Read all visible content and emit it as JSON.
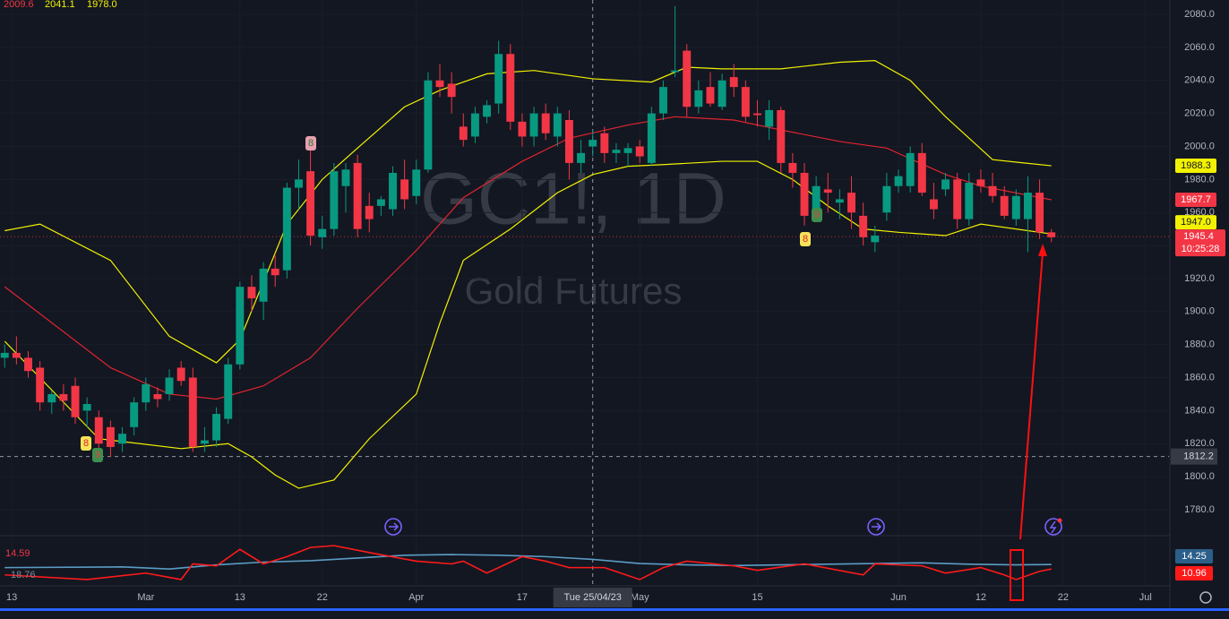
{
  "chart_data": {
    "type": "candlestick",
    "title": "GC1!, 1D",
    "subtitle": "Gold Futures",
    "legend_values": [
      "2009.6",
      "2041.1",
      "1978.0"
    ],
    "up_color": "#089981",
    "down_color": "#f23645",
    "candles": [
      [
        1872,
        1880,
        1866,
        1875
      ],
      [
        1875,
        1885,
        1868,
        1872
      ],
      [
        1872,
        1876,
        1860,
        1864
      ],
      [
        1866,
        1870,
        1840,
        1845
      ],
      [
        1845,
        1852,
        1838,
        1850
      ],
      [
        1850,
        1856,
        1840,
        1846
      ],
      [
        1855,
        1860,
        1832,
        1836
      ],
      [
        1840,
        1848,
        1830,
        1844
      ],
      [
        1836,
        1840,
        1815,
        1820
      ],
      [
        1830,
        1834,
        1812,
        1818
      ],
      [
        1820,
        1830,
        1815,
        1826
      ],
      [
        1830,
        1848,
        1825,
        1845
      ],
      [
        1845,
        1860,
        1840,
        1856
      ],
      [
        1850,
        1854,
        1842,
        1847
      ],
      [
        1850,
        1865,
        1846,
        1860
      ],
      [
        1866,
        1870,
        1855,
        1858
      ],
      [
        1860,
        1866,
        1815,
        1818
      ],
      [
        1820,
        1830,
        1815,
        1822
      ],
      [
        1822,
        1842,
        1818,
        1838
      ],
      [
        1835,
        1872,
        1832,
        1868
      ],
      [
        1868,
        1918,
        1865,
        1915
      ],
      [
        1915,
        1922,
        1900,
        1908
      ],
      [
        1906,
        1930,
        1895,
        1926
      ],
      [
        1926,
        1934,
        1915,
        1922
      ],
      [
        1925,
        1978,
        1920,
        1975
      ],
      [
        1975,
        1992,
        1962,
        1980
      ],
      [
        1985,
        2003,
        1940,
        1946
      ],
      [
        1945,
        1958,
        1938,
        1950
      ],
      [
        1950,
        1990,
        1946,
        1985
      ],
      [
        1976,
        1990,
        1960,
        1986
      ],
      [
        1990,
        1995,
        1945,
        1950
      ],
      [
        1964,
        1972,
        1948,
        1956
      ],
      [
        1964,
        1970,
        1958,
        1968
      ],
      [
        1962,
        1988,
        1958,
        1984
      ],
      [
        1980,
        1992,
        1962,
        1968
      ],
      [
        1970,
        1992,
        1965,
        1986
      ],
      [
        1986,
        2045,
        1984,
        2040
      ],
      [
        2040,
        2050,
        2030,
        2036
      ],
      [
        2038,
        2045,
        2020,
        2030
      ],
      [
        2012,
        2020,
        2000,
        2004
      ],
      [
        2006,
        2024,
        2002,
        2020
      ],
      [
        2018,
        2028,
        2014,
        2025
      ],
      [
        2026,
        2064,
        2020,
        2056
      ],
      [
        2056,
        2062,
        2010,
        2015
      ],
      [
        2015,
        2020,
        2000,
        2006
      ],
      [
        2006,
        2024,
        2000,
        2020
      ],
      [
        2020,
        2026,
        2004,
        2008
      ],
      [
        2006,
        2024,
        2000,
        2020
      ],
      [
        2016,
        2022,
        1980,
        1990
      ],
      [
        1990,
        2004,
        1984,
        1996
      ],
      [
        2000,
        2010,
        1994,
        2004
      ],
      [
        2008,
        2012,
        1990,
        1996
      ],
      [
        1996,
        2002,
        1990,
        1998
      ],
      [
        1996,
        2002,
        1988,
        1999
      ],
      [
        2000,
        2004,
        1990,
        1994
      ],
      [
        1990,
        2024,
        1988,
        2020
      ],
      [
        2020,
        2040,
        2016,
        2036
      ],
      [
        2045,
        2085,
        2042,
        2046
      ],
      [
        2058,
        2062,
        2018,
        2024
      ],
      [
        2024,
        2040,
        2020,
        2034
      ],
      [
        2036,
        2045,
        2024,
        2026
      ],
      [
        2024,
        2044,
        2022,
        2040
      ],
      [
        2042,
        2050,
        2030,
        2036
      ],
      [
        2036,
        2040,
        2015,
        2018
      ],
      [
        2020,
        2028,
        2012,
        2019
      ],
      [
        2012,
        2028,
        2004,
        2022
      ],
      [
        2022,
        2024,
        1984,
        1990
      ],
      [
        1990,
        1996,
        1975,
        1984
      ],
      [
        1984,
        1990,
        1952,
        1958
      ],
      [
        1960,
        1982,
        1956,
        1976
      ],
      [
        1974,
        1984,
        1960,
        1972
      ],
      [
        1966,
        1974,
        1956,
        1968
      ],
      [
        1972,
        1982,
        1950,
        1960
      ],
      [
        1958,
        1966,
        1940,
        1945
      ],
      [
        1942,
        1952,
        1936,
        1946
      ],
      [
        1960,
        1984,
        1955,
        1976
      ],
      [
        1976,
        1986,
        1972,
        1982
      ],
      [
        1976,
        2000,
        1972,
        1996
      ],
      [
        1996,
        2002,
        1970,
        1972
      ],
      [
        1968,
        1978,
        1956,
        1962
      ],
      [
        1974,
        1984,
        1970,
        1980
      ],
      [
        1980,
        1984,
        1950,
        1956
      ],
      [
        1956,
        1984,
        1952,
        1978
      ],
      [
        1980,
        1986,
        1972,
        1976
      ],
      [
        1976,
        1984,
        1966,
        1970
      ],
      [
        1970,
        1976,
        1956,
        1958
      ],
      [
        1956,
        1974,
        1952,
        1970
      ],
      [
        1956,
        1982,
        1936,
        1972
      ],
      [
        1972,
        1980,
        1944,
        1948
      ],
      [
        1948,
        1950,
        1942,
        1945
      ]
    ],
    "xlim": [
      -0.4,
      99
    ],
    "xticks": [
      {
        "value": 0.6,
        "label": "13"
      },
      {
        "value": 12,
        "label": "Mar"
      },
      {
        "value": 20,
        "label": "13"
      },
      {
        "value": 27,
        "label": "22"
      },
      {
        "value": 35,
        "label": "Apr"
      },
      {
        "value": 44,
        "label": "17"
      },
      {
        "value": 54,
        "label": "May"
      },
      {
        "value": 64,
        "label": "15"
      },
      {
        "value": 76,
        "label": "Jun"
      },
      {
        "value": 83,
        "label": "12"
      },
      {
        "value": 90,
        "label": "22"
      },
      {
        "value": 97,
        "label": "Jul"
      }
    ],
    "ylim": [
      1768.6,
      2088.7
    ],
    "yticks": [
      {
        "value": 1780,
        "label": "1780.0"
      },
      {
        "value": 1800,
        "label": "1800.0"
      },
      {
        "value": 1820,
        "label": "1820.0"
      },
      {
        "value": 1840,
        "label": "1840.0"
      },
      {
        "value": 1860,
        "label": "1860.0"
      },
      {
        "value": 1880,
        "label": "1880.0"
      },
      {
        "value": 1900,
        "label": "1900.0"
      },
      {
        "value": 1920,
        "label": "1920.0"
      },
      {
        "value": 1940,
        "label": "1940.0"
      },
      {
        "value": 1960,
        "label": "1960.0"
      },
      {
        "value": 1980,
        "label": "1980.0"
      },
      {
        "value": 2000,
        "label": "2000.0"
      },
      {
        "value": 2020,
        "label": "2020.0"
      },
      {
        "value": 2040,
        "label": "2040.0"
      },
      {
        "value": 2060,
        "label": "2060.0"
      },
      {
        "value": 2080,
        "label": "2080.0"
      }
    ],
    "crosshair": {
      "x": {
        "value": 50,
        "label": "Tue 25/04/23"
      },
      "y": 1812.2
    },
    "last_price": {
      "value": 1945.4,
      "countdown": "10:25:28",
      "color": "#f23645"
    },
    "overlays": [
      {
        "color": "#f2f200",
        "tag": 1988.3,
        "x": [
          0,
          3,
          9,
          14,
          18,
          20,
          24,
          27,
          30,
          34,
          37,
          41,
          45,
          50,
          55,
          58,
          61,
          66,
          71,
          74,
          77,
          80,
          84,
          89
        ],
        "values": [
          1949,
          1953,
          1931,
          1885,
          1869,
          1883,
          1953,
          1980,
          1999,
          2024,
          2034,
          2044,
          2046,
          2041,
          2039,
          2048,
          2047,
          2047,
          2051,
          2052,
          2040,
          2018,
          1992,
          1988.3
        ]
      },
      {
        "color": "#e0242e",
        "tag": 1967.7,
        "x": [
          0,
          9,
          14,
          18,
          22,
          26,
          30,
          35,
          39,
          44,
          48,
          53,
          57,
          62,
          66,
          71,
          75,
          80,
          83,
          89
        ],
        "values": [
          1915,
          1866,
          1850,
          1847,
          1855,
          1872,
          1902,
          1937,
          1969,
          1991,
          2005,
          2013,
          2018,
          2016,
          2010,
          2003,
          1999,
          1983,
          1976,
          1967.7
        ]
      },
      {
        "color": "#f2f200",
        "tag": {
          "value": 1947,
          "label": "1947.0"
        },
        "x": [
          0,
          8,
          15,
          19,
          21,
          23,
          25,
          28,
          31,
          35,
          37,
          39,
          43,
          47,
          50,
          53,
          56,
          61,
          64,
          67,
          70,
          73,
          76,
          80,
          83,
          89
        ],
        "values": [
          1882,
          1823,
          1817,
          1820,
          1812,
          1801,
          1793,
          1798,
          1823,
          1850,
          1893,
          1931,
          1950,
          1972,
          1983,
          1988,
          1989,
          1991,
          1991,
          1980,
          1964,
          1950,
          1948,
          1946,
          1953,
          1947
        ]
      }
    ],
    "indicator": {
      "ylim": [
        0,
        32
      ],
      "left_labels": [
        "14.59",
        "18.76"
      ],
      "series": [
        {
          "color": "#5b9cc4",
          "tag": 14.25,
          "x": [
            0,
            10,
            14,
            18,
            22,
            26,
            30,
            34,
            38,
            42,
            46,
            50,
            54,
            58,
            62,
            66,
            70,
            74,
            78,
            82,
            86,
            89
          ],
          "values": [
            12,
            12.5,
            11,
            14,
            16,
            17,
            19,
            21,
            21.5,
            21,
            20,
            18,
            15,
            14,
            13.5,
            14,
            14.5,
            15,
            15.5,
            14.5,
            14,
            14.25
          ]
        },
        {
          "color": "#ff1a1a",
          "tag": 10.96,
          "x": [
            0,
            7,
            12,
            15,
            16,
            18,
            20,
            22,
            24,
            26,
            28,
            31,
            35,
            38,
            39,
            41,
            44,
            46,
            48,
            51,
            54,
            56,
            58,
            62,
            64,
            68,
            73,
            74,
            78,
            80,
            83,
            85,
            86,
            88,
            89
          ],
          "values": [
            6.7,
            3.3,
            8,
            3.3,
            14.7,
            13.3,
            25.3,
            14.7,
            20,
            26.7,
            28,
            23,
            16.7,
            14.7,
            16.7,
            8,
            20,
            16.7,
            12,
            12,
            3.3,
            12,
            16.7,
            13.3,
            10,
            14.7,
            6.7,
            14.7,
            13.3,
            8,
            12,
            6.7,
            3.3,
            9.3,
            10.96
          ]
        }
      ]
    },
    "markers": [
      "8",
      "9",
      "8",
      "9",
      "8"
    ]
  }
}
